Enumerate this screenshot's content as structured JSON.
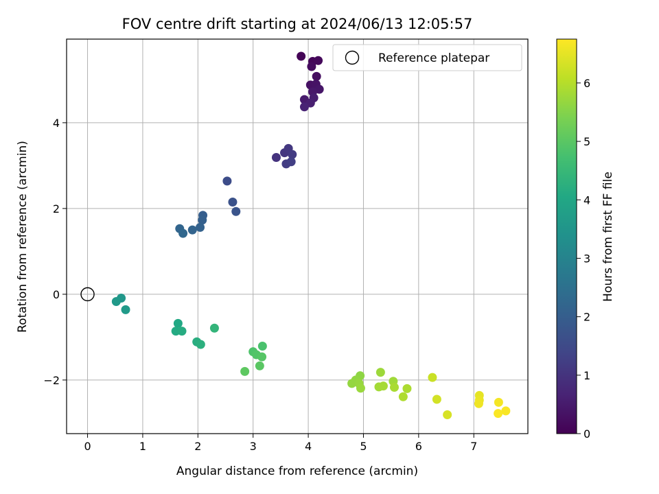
{
  "chart_data": {
    "type": "scatter",
    "title": "FOV centre drift starting at 2024/06/13 12:05:57",
    "xlabel": "Angular distance from reference (arcmin)",
    "ylabel": "Rotation from reference (arcmin)",
    "xlim": [
      -0.38,
      7.98
    ],
    "ylim": [
      -3.25,
      5.95
    ],
    "xticks": [
      0,
      1,
      2,
      3,
      4,
      5,
      6,
      7
    ],
    "yticks": [
      -2,
      0,
      2,
      4
    ],
    "ytick_labels": [
      "−2",
      "0",
      "2",
      "4"
    ],
    "grid": true,
    "legend": {
      "placement": "upper-right",
      "entries": [
        "Reference platepar"
      ]
    },
    "reference_point": {
      "x": 0,
      "y": 0
    },
    "colorbar": {
      "label": "Hours from first FF file",
      "range": [
        0,
        6.75
      ],
      "ticks": [
        0,
        1,
        2,
        3,
        4,
        5,
        6
      ],
      "colormap": "viridis"
    },
    "points": [
      {
        "x": 3.87,
        "y": 5.55,
        "hours": 0.05
      },
      {
        "x": 4.08,
        "y": 5.43,
        "hours": 0.1
      },
      {
        "x": 4.18,
        "y": 5.45,
        "hours": 0.15
      },
      {
        "x": 4.06,
        "y": 5.31,
        "hours": 0.2
      },
      {
        "x": 4.15,
        "y": 5.08,
        "hours": 0.25
      },
      {
        "x": 4.04,
        "y": 4.88,
        "hours": 0.3
      },
      {
        "x": 4.14,
        "y": 4.9,
        "hours": 0.35
      },
      {
        "x": 4.2,
        "y": 4.78,
        "hours": 0.4
      },
      {
        "x": 4.08,
        "y": 4.72,
        "hours": 0.45
      },
      {
        "x": 3.93,
        "y": 4.54,
        "hours": 0.5
      },
      {
        "x": 4.1,
        "y": 4.58,
        "hours": 0.55
      },
      {
        "x": 4.04,
        "y": 4.46,
        "hours": 0.6
      },
      {
        "x": 3.93,
        "y": 4.37,
        "hours": 0.65
      },
      {
        "x": 3.42,
        "y": 3.19,
        "hours": 1.0
      },
      {
        "x": 3.57,
        "y": 3.3,
        "hours": 1.05
      },
      {
        "x": 3.64,
        "y": 3.4,
        "hours": 1.1
      },
      {
        "x": 3.71,
        "y": 3.26,
        "hours": 1.15
      },
      {
        "x": 3.6,
        "y": 3.04,
        "hours": 1.2
      },
      {
        "x": 3.69,
        "y": 3.09,
        "hours": 1.25
      },
      {
        "x": 2.53,
        "y": 2.64,
        "hours": 1.55
      },
      {
        "x": 2.63,
        "y": 2.15,
        "hours": 1.7
      },
      {
        "x": 2.69,
        "y": 1.93,
        "hours": 1.75
      },
      {
        "x": 2.09,
        "y": 1.84,
        "hours": 2.0
      },
      {
        "x": 2.08,
        "y": 1.73,
        "hours": 2.05
      },
      {
        "x": 2.04,
        "y": 1.56,
        "hours": 2.1
      },
      {
        "x": 1.9,
        "y": 1.5,
        "hours": 2.15
      },
      {
        "x": 1.67,
        "y": 1.53,
        "hours": 2.2
      },
      {
        "x": 1.73,
        "y": 1.42,
        "hours": 2.25
      },
      {
        "x": 0.61,
        "y": -0.09,
        "hours": 3.55
      },
      {
        "x": 0.52,
        "y": -0.17,
        "hours": 3.6
      },
      {
        "x": 0.69,
        "y": -0.36,
        "hours": 3.65
      },
      {
        "x": 1.64,
        "y": -0.68,
        "hours": 4.05
      },
      {
        "x": 1.6,
        "y": -0.86,
        "hours": 4.1
      },
      {
        "x": 1.71,
        "y": -0.86,
        "hours": 4.15
      },
      {
        "x": 1.98,
        "y": -1.11,
        "hours": 4.2
      },
      {
        "x": 2.05,
        "y": -1.17,
        "hours": 4.25
      },
      {
        "x": 2.3,
        "y": -0.79,
        "hours": 4.4
      },
      {
        "x": 3.17,
        "y": -1.21,
        "hours": 4.8
      },
      {
        "x": 3.0,
        "y": -1.34,
        "hours": 4.85
      },
      {
        "x": 3.06,
        "y": -1.41,
        "hours": 4.9
      },
      {
        "x": 3.16,
        "y": -1.46,
        "hours": 4.95
      },
      {
        "x": 3.12,
        "y": -1.67,
        "hours": 5.0
      },
      {
        "x": 2.85,
        "y": -1.8,
        "hours": 5.05
      },
      {
        "x": 4.94,
        "y": -1.9,
        "hours": 5.6
      },
      {
        "x": 4.86,
        "y": -2.0,
        "hours": 5.63
      },
      {
        "x": 4.79,
        "y": -2.08,
        "hours": 5.66
      },
      {
        "x": 4.92,
        "y": -2.08,
        "hours": 5.69
      },
      {
        "x": 4.95,
        "y": -2.19,
        "hours": 5.72
      },
      {
        "x": 5.31,
        "y": -1.82,
        "hours": 5.75
      },
      {
        "x": 5.54,
        "y": -2.03,
        "hours": 5.78
      },
      {
        "x": 5.28,
        "y": -2.16,
        "hours": 5.81
      },
      {
        "x": 5.36,
        "y": -2.14,
        "hours": 5.84
      },
      {
        "x": 5.56,
        "y": -2.17,
        "hours": 5.87
      },
      {
        "x": 5.79,
        "y": -2.2,
        "hours": 5.9
      },
      {
        "x": 5.72,
        "y": -2.39,
        "hours": 5.93
      },
      {
        "x": 6.25,
        "y": -1.94,
        "hours": 6.2
      },
      {
        "x": 6.33,
        "y": -2.45,
        "hours": 6.3
      },
      {
        "x": 6.52,
        "y": -2.81,
        "hours": 6.35
      },
      {
        "x": 7.1,
        "y": -2.36,
        "hours": 6.5
      },
      {
        "x": 7.1,
        "y": -2.47,
        "hours": 6.55
      },
      {
        "x": 7.09,
        "y": -2.55,
        "hours": 6.6
      },
      {
        "x": 7.45,
        "y": -2.52,
        "hours": 6.65
      },
      {
        "x": 7.58,
        "y": -2.72,
        "hours": 6.7
      },
      {
        "x": 7.44,
        "y": -2.78,
        "hours": 6.72
      }
    ]
  }
}
